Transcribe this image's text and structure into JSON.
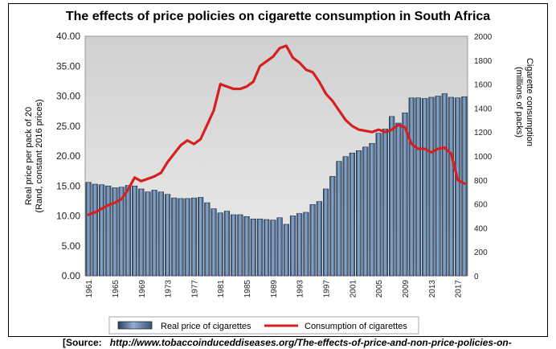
{
  "chart_data": {
    "type": "bar+line",
    "title": "The effects of price policies on cigarette consumption in South Africa",
    "ylabel_left_line1": "Real price per pack of 20",
    "ylabel_left_line2": "(Rand, constant 2016 prices)",
    "ylabel_right_line1": "Cigarette consumption",
    "ylabel_right_line2": "(millions of packs)",
    "ylim_left": [
      0,
      40
    ],
    "ylim_right": [
      0,
      2000
    ],
    "yticks_left": [
      "0.00",
      "5.00",
      "10.00",
      "15.00",
      "20.00",
      "25.00",
      "30.00",
      "35.00",
      "40.00"
    ],
    "yticks_right": [
      "0",
      "200",
      "400",
      "600",
      "800",
      "1000",
      "1200",
      "1400",
      "1600",
      "1800",
      "2000"
    ],
    "x": [
      1961,
      1962,
      1963,
      1964,
      1965,
      1966,
      1967,
      1968,
      1969,
      1970,
      1971,
      1972,
      1973,
      1974,
      1975,
      1976,
      1977,
      1978,
      1979,
      1980,
      1981,
      1982,
      1983,
      1984,
      1985,
      1986,
      1987,
      1988,
      1989,
      1990,
      1991,
      1992,
      1993,
      1994,
      1995,
      1996,
      1997,
      1998,
      1999,
      2000,
      2001,
      2002,
      2003,
      2004,
      2005,
      2006,
      2007,
      2008,
      2009,
      2010,
      2011,
      2012,
      2013,
      2014,
      2015,
      2016,
      2017,
      2018
    ],
    "xtick_labels": [
      "1961",
      "1965",
      "1969",
      "1973",
      "1977",
      "1981",
      "1985",
      "1989",
      "1993",
      "1997",
      "2001",
      "2005",
      "2009",
      "2013",
      "2017"
    ],
    "series": [
      {
        "name": "Real price of cigarettes",
        "type": "bar",
        "axis": "left",
        "color": "#6f8fb8",
        "values": [
          15.6,
          15.3,
          15.2,
          15.0,
          14.7,
          14.8,
          15.1,
          15.0,
          14.5,
          14.0,
          14.3,
          14.0,
          13.6,
          13.0,
          12.9,
          12.9,
          13.0,
          13.1,
          12.2,
          11.2,
          10.5,
          10.8,
          10.2,
          10.2,
          9.9,
          9.5,
          9.5,
          9.4,
          9.3,
          9.7,
          8.6,
          10.0,
          10.4,
          10.6,
          11.9,
          12.4,
          14.5,
          16.6,
          19.1,
          19.9,
          20.5,
          20.9,
          21.5,
          22.1,
          23.8,
          24.5,
          26.6,
          25.5,
          27.2,
          29.7,
          29.7,
          29.6,
          29.8,
          30.0,
          30.4,
          29.8,
          29.7,
          29.9
        ]
      },
      {
        "name": "Consumption of cigarettes",
        "type": "line",
        "axis": "right",
        "color": "#d42020",
        "values": [
          510,
          530,
          560,
          590,
          610,
          640,
          720,
          820,
          790,
          810,
          830,
          860,
          950,
          1020,
          1090,
          1130,
          1100,
          1140,
          1260,
          1380,
          1600,
          1580,
          1560,
          1560,
          1580,
          1620,
          1750,
          1790,
          1830,
          1900,
          1920,
          1820,
          1780,
          1720,
          1700,
          1620,
          1520,
          1460,
          1380,
          1300,
          1250,
          1220,
          1210,
          1200,
          1220,
          1200,
          1220,
          1260,
          1240,
          1100,
          1060,
          1060,
          1030,
          1060,
          1070,
          1020,
          800,
          770
        ]
      }
    ],
    "legend_position": "bottom",
    "grid": false
  },
  "source": {
    "label": "[Source:",
    "url": "http://www.tobaccoinduceddiseases.org/The-effects-of-price-and-non-price-policies-on-"
  }
}
